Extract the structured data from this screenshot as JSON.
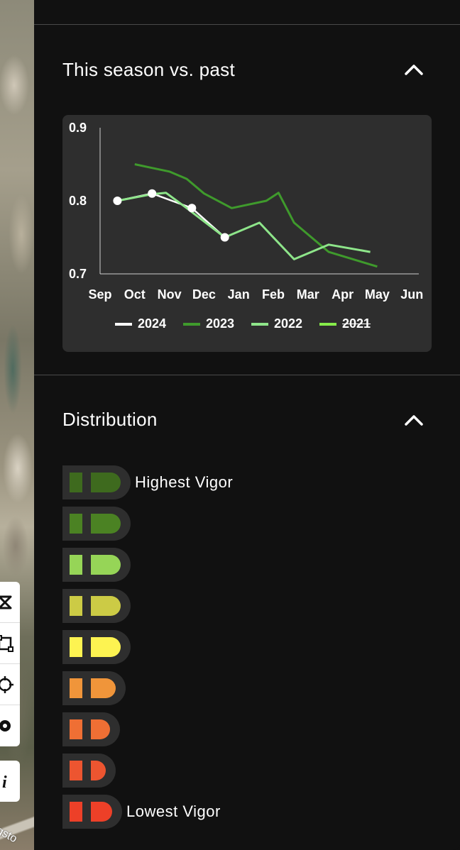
{
  "map": {
    "road_label": "gsto"
  },
  "map_tools": [
    {
      "icon": "polygon-draw-icon"
    },
    {
      "icon": "rectangle-select-icon"
    },
    {
      "icon": "crosshair-locate-icon"
    },
    {
      "icon": "eye-icon"
    },
    {
      "icon": "info-icon"
    }
  ],
  "season_section": {
    "title": "This season vs. past",
    "collapse_icon": "chevron-up-icon"
  },
  "chart_data": {
    "type": "line",
    "x": [
      "Sep",
      "Oct",
      "Nov",
      "Dec",
      "Jan",
      "Feb",
      "Mar",
      "Apr",
      "May",
      "Jun"
    ],
    "ylim": [
      0.7,
      0.9
    ],
    "yticks": [
      "0.9",
      "0.8",
      "0.7"
    ],
    "legend_placement": "bottom",
    "grid": false,
    "series": [
      {
        "name": "2024",
        "color": "#ffffff",
        "markers": true,
        "hidden": false,
        "points": [
          [
            0.5,
            0.8
          ],
          [
            1.5,
            0.81
          ],
          [
            2.65,
            0.79
          ],
          [
            3.6,
            0.75
          ]
        ]
      },
      {
        "name": "2023",
        "color": "#3f9a2c",
        "markers": false,
        "hidden": false,
        "points": [
          [
            1,
            0.85
          ],
          [
            1.5,
            0.845
          ],
          [
            2,
            0.84
          ],
          [
            2.5,
            0.83
          ],
          [
            3,
            0.81
          ],
          [
            3.8,
            0.79
          ],
          [
            4.8,
            0.8
          ],
          [
            5.15,
            0.811
          ],
          [
            5.6,
            0.77
          ],
          [
            6.6,
            0.73
          ],
          [
            8,
            0.71
          ]
        ]
      },
      {
        "name": "2022",
        "color": "#8ee58a",
        "markers": false,
        "hidden": false,
        "points": [
          [
            0.5,
            0.8
          ],
          [
            1.5,
            0.809
          ],
          [
            1.9,
            0.811
          ],
          [
            2.5,
            0.79
          ],
          [
            3.6,
            0.75
          ],
          [
            4.6,
            0.77
          ],
          [
            5.6,
            0.72
          ],
          [
            6.6,
            0.74
          ],
          [
            7.8,
            0.73
          ]
        ]
      },
      {
        "name": "2021",
        "color": "#86ec4a",
        "markers": false,
        "hidden": true,
        "points": []
      }
    ]
  },
  "distribution_section": {
    "title": "Distribution",
    "collapse_icon": "chevron-up-icon",
    "classes": [
      {
        "color": "#3e6a1e",
        "fill": 1.0,
        "label": "Highest Vigor"
      },
      {
        "color": "#4b8223",
        "fill": 1.0,
        "label": ""
      },
      {
        "color": "#96d557",
        "fill": 1.0,
        "label": ""
      },
      {
        "color": "#cccb45",
        "fill": 1.0,
        "label": ""
      },
      {
        "color": "#fdf351",
        "fill": 1.0,
        "label": ""
      },
      {
        "color": "#f0953a",
        "fill": 0.75,
        "label": ""
      },
      {
        "color": "#ef6f34",
        "fill": 0.5,
        "label": ""
      },
      {
        "color": "#ed5530",
        "fill": 0.3,
        "label": ""
      },
      {
        "color": "#ed4028",
        "fill": 0.6,
        "label": "Lowest Vigor"
      }
    ]
  }
}
